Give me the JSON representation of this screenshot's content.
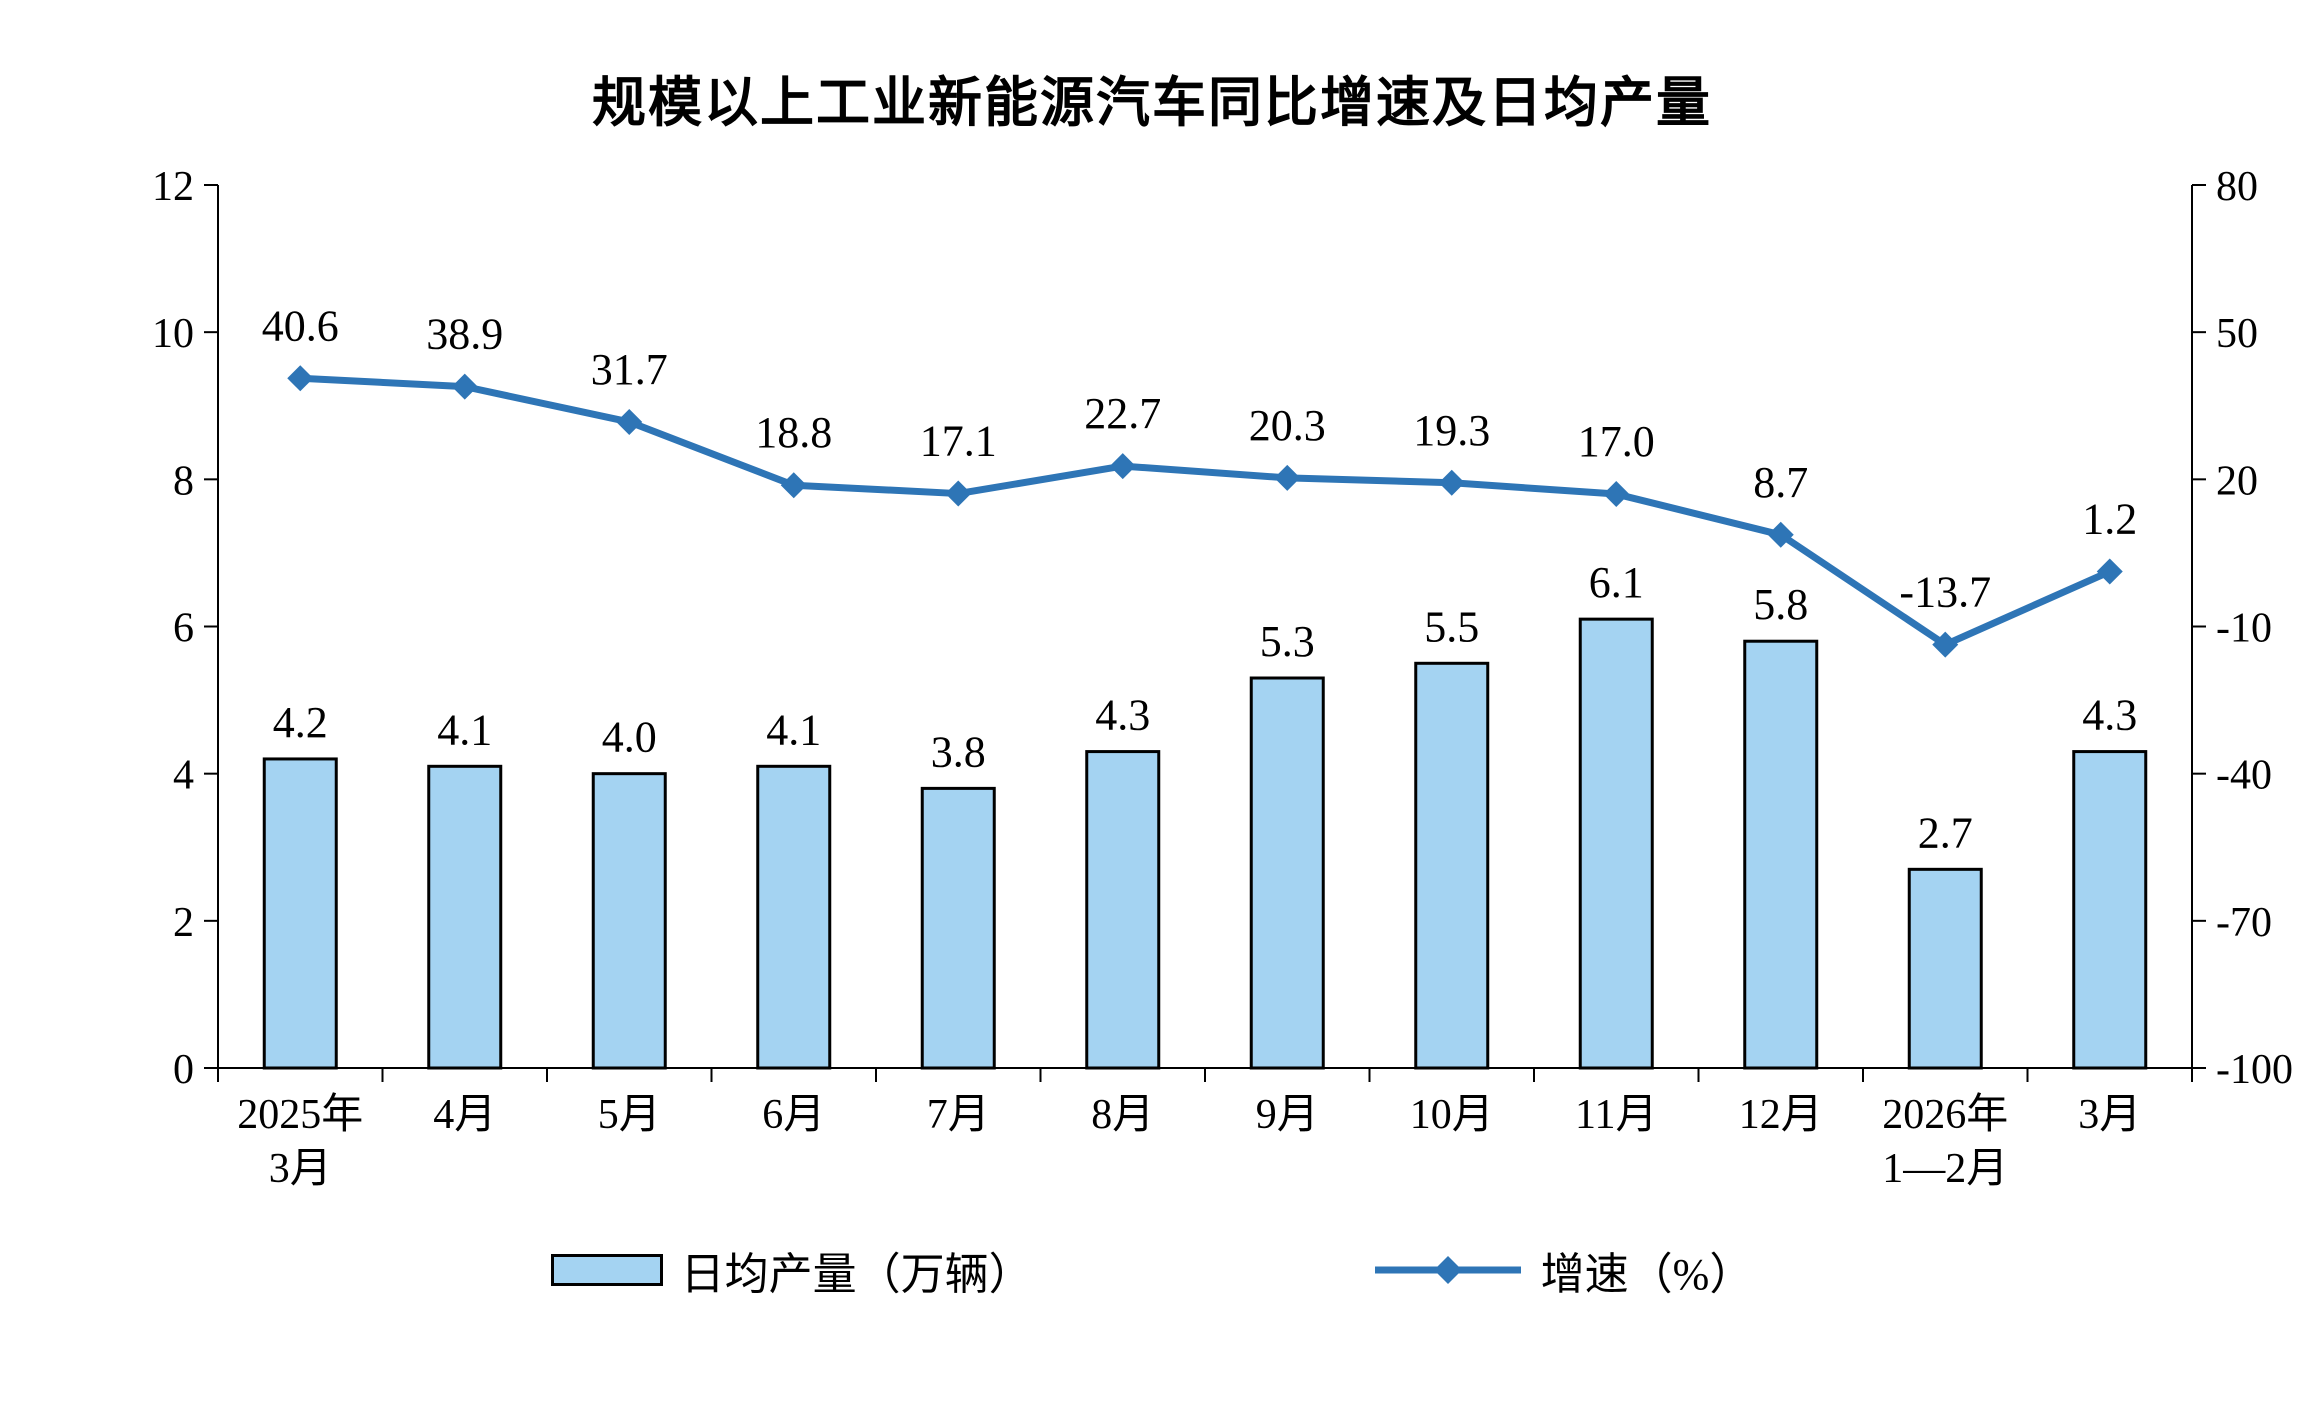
{
  "title": "规模以上工业新能源汽车同比增速及日均产量",
  "chart_data": {
    "type": "bar+line",
    "categories": [
      "2025年\n3月",
      "4月",
      "5月",
      "6月",
      "7月",
      "8月",
      "9月",
      "10月",
      "11月",
      "12月",
      "2026年\n1—2月",
      "3月"
    ],
    "series": [
      {
        "name": "日均产量（万辆）",
        "type": "bar",
        "axis": "left",
        "values": [
          4.2,
          4.1,
          4.0,
          4.1,
          3.8,
          4.3,
          5.3,
          5.5,
          6.1,
          5.8,
          2.7,
          4.3
        ]
      },
      {
        "name": "增速（%）",
        "type": "line",
        "axis": "right",
        "values": [
          40.6,
          38.9,
          31.7,
          18.8,
          17.1,
          22.7,
          20.3,
          19.3,
          17.0,
          8.7,
          -13.7,
          1.2
        ]
      }
    ],
    "left_axis": {
      "min": 0,
      "max": 12,
      "ticks": [
        0,
        2,
        4,
        6,
        8,
        10,
        12
      ]
    },
    "right_axis": {
      "min": -100,
      "max": 80,
      "ticks": [
        -100,
        -70,
        -40,
        -10,
        20,
        50,
        80
      ]
    },
    "colors": {
      "bar_fill": "#A4D3F2",
      "bar_border": "#000000",
      "line": "#2E75B6",
      "axis": "#000000",
      "text": "#000000"
    },
    "grid": false,
    "legend_position": "bottom"
  }
}
